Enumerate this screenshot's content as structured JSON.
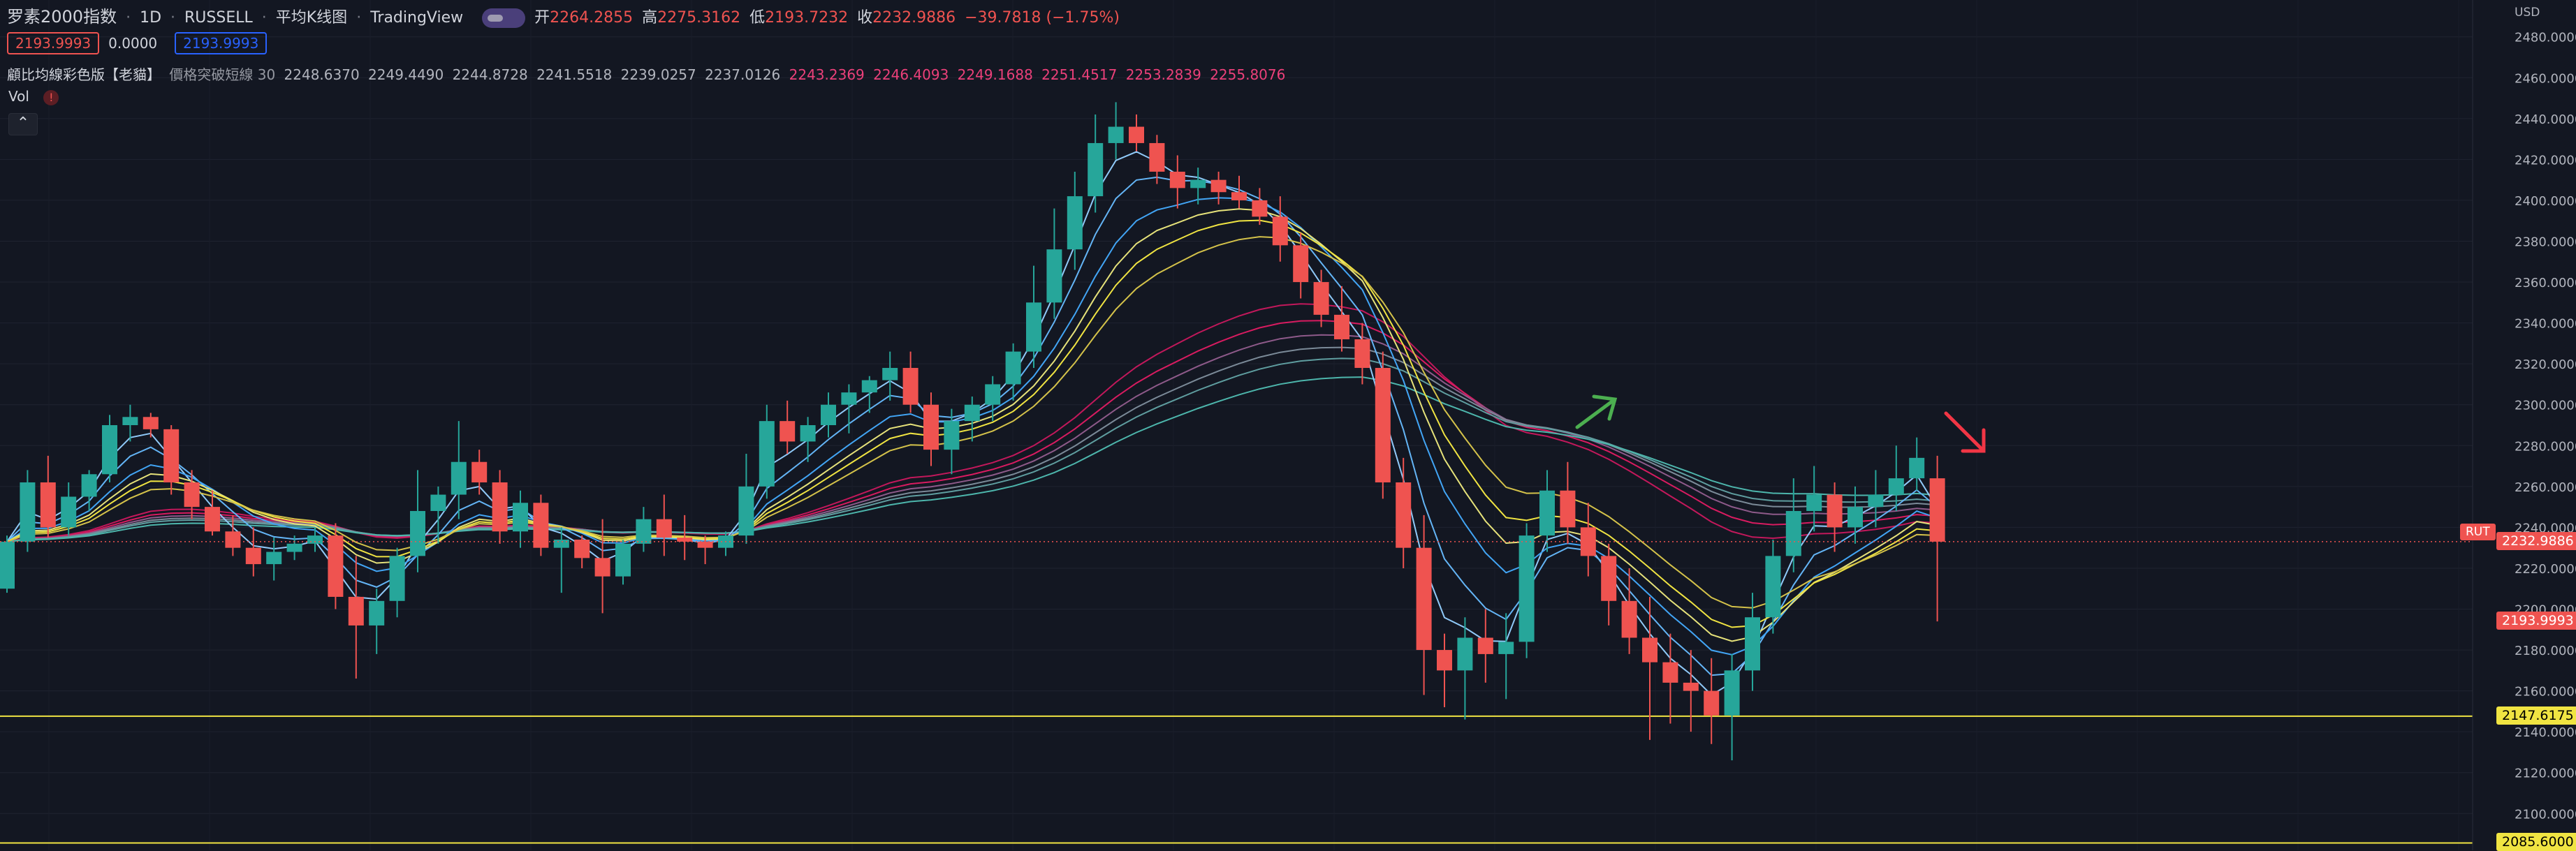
{
  "header": {
    "symbol_name": "罗素2000指数",
    "interval": "1D",
    "exchange": "RUSSELL",
    "chart_type": "平均K线图",
    "source": "TradingView",
    "ohlc": {
      "open_label": "开",
      "open": "2264.2855",
      "high_label": "高",
      "high": "2275.3162",
      "low_label": "低",
      "low": "2193.7232",
      "close_label": "收",
      "close": "2232.9886",
      "change": "−39.7818 (−1.75%)"
    },
    "boxes": [
      "2193.9993",
      "0.0000",
      "2193.9993"
    ]
  },
  "indicator": {
    "name": "顧比均線彩色版【老貓】",
    "params": "價格突破短線 30",
    "values_short": [
      "2248.6370",
      "2249.4490",
      "2244.8728",
      "2241.5518",
      "2239.0257",
      "2237.0126"
    ],
    "values_long": [
      "2243.2369",
      "2246.4093",
      "2249.1688",
      "2251.4517",
      "2253.2839",
      "2255.8076"
    ]
  },
  "vol": {
    "label": "Vol",
    "warning": "!"
  },
  "axis": {
    "currency": "USD"
  },
  "price_labels": {
    "symbol_tag": "RUT",
    "last_price": "2232.9886",
    "low_marker": "2193.9993",
    "level_1": "2147.6175",
    "level_2": "2085.6000"
  },
  "colors": {
    "background": "#131722",
    "up": "#26a69a",
    "down": "#ef5350",
    "level_line": "#f0e442",
    "arrow_up": "#4caf50",
    "arrow_down": "#f23645"
  },
  "chart_data": {
    "type": "candlestick",
    "title": "",
    "y_ticks": [
      2480,
      2460,
      2440,
      2420,
      2400,
      2380,
      2360,
      2340,
      2320,
      2300,
      2280,
      2260,
      2240,
      2220,
      2200,
      2180,
      2160,
      2140,
      2120,
      2100
    ],
    "ylim": [
      2082,
      2498
    ],
    "horizontal_levels": [
      2147.6175,
      2085.6
    ],
    "last_close": 2232.9886,
    "candles": [
      [
        2210,
        2236,
        2208,
        2233
      ],
      [
        2233,
        2268,
        2228,
        2262
      ],
      [
        2262,
        2275,
        2235,
        2240
      ],
      [
        2240,
        2262,
        2236,
        2255
      ],
      [
        2255,
        2268,
        2248,
        2266
      ],
      [
        2266,
        2295,
        2262,
        2290
      ],
      [
        2290,
        2300,
        2282,
        2294
      ],
      [
        2294,
        2296,
        2284,
        2288
      ],
      [
        2288,
        2290,
        2256,
        2262
      ],
      [
        2262,
        2268,
        2244,
        2250
      ],
      [
        2250,
        2258,
        2236,
        2238
      ],
      [
        2238,
        2246,
        2226,
        2230
      ],
      [
        2230,
        2240,
        2216,
        2222
      ],
      [
        2222,
        2235,
        2214,
        2228
      ],
      [
        2228,
        2236,
        2224,
        2232
      ],
      [
        2232,
        2240,
        2228,
        2236
      ],
      [
        2236,
        2242,
        2200,
        2206
      ],
      [
        2206,
        2226,
        2166,
        2192
      ],
      [
        2192,
        2210,
        2178,
        2204
      ],
      [
        2204,
        2230,
        2196,
        2226
      ],
      [
        2226,
        2268,
        2218,
        2248
      ],
      [
        2248,
        2260,
        2232,
        2256
      ],
      [
        2256,
        2292,
        2244,
        2272
      ],
      [
        2272,
        2278,
        2256,
        2262
      ],
      [
        2262,
        2268,
        2232,
        2238
      ],
      [
        2238,
        2258,
        2230,
        2252
      ],
      [
        2252,
        2256,
        2226,
        2230
      ],
      [
        2230,
        2240,
        2208,
        2234
      ],
      [
        2234,
        2236,
        2220,
        2225
      ],
      [
        2225,
        2244,
        2198,
        2216
      ],
      [
        2216,
        2234,
        2212,
        2232
      ],
      [
        2232,
        2250,
        2228,
        2244
      ],
      [
        2244,
        2256,
        2226,
        2235
      ],
      [
        2235,
        2246,
        2224,
        2233
      ],
      [
        2233,
        2236,
        2222,
        2230
      ],
      [
        2230,
        2238,
        2226,
        2236
      ],
      [
        2236,
        2276,
        2232,
        2260
      ],
      [
        2260,
        2300,
        2254,
        2292
      ],
      [
        2292,
        2302,
        2276,
        2282
      ],
      [
        2282,
        2294,
        2272,
        2290
      ],
      [
        2290,
        2306,
        2284,
        2300
      ],
      [
        2300,
        2310,
        2286,
        2306
      ],
      [
        2306,
        2314,
        2296,
        2312
      ],
      [
        2312,
        2326,
        2302,
        2318
      ],
      [
        2318,
        2326,
        2296,
        2300
      ],
      [
        2300,
        2306,
        2270,
        2278
      ],
      [
        2278,
        2298,
        2266,
        2292
      ],
      [
        2292,
        2304,
        2282,
        2300
      ],
      [
        2300,
        2314,
        2292,
        2310
      ],
      [
        2310,
        2330,
        2302,
        2326
      ],
      [
        2326,
        2368,
        2318,
        2350
      ],
      [
        2350,
        2396,
        2342,
        2376
      ],
      [
        2376,
        2414,
        2366,
        2402
      ],
      [
        2402,
        2442,
        2394,
        2428
      ],
      [
        2428,
        2448,
        2420,
        2436
      ],
      [
        2436,
        2442,
        2424,
        2428
      ],
      [
        2428,
        2432,
        2408,
        2414
      ],
      [
        2414,
        2422,
        2396,
        2406
      ],
      [
        2406,
        2416,
        2398,
        2410
      ],
      [
        2410,
        2414,
        2398,
        2404
      ],
      [
        2404,
        2412,
        2396,
        2400
      ],
      [
        2400,
        2406,
        2388,
        2392
      ],
      [
        2392,
        2402,
        2370,
        2378
      ],
      [
        2378,
        2384,
        2352,
        2360
      ],
      [
        2360,
        2366,
        2338,
        2344
      ],
      [
        2344,
        2358,
        2326,
        2332
      ],
      [
        2332,
        2340,
        2310,
        2318
      ],
      [
        2318,
        2326,
        2254,
        2262
      ],
      [
        2262,
        2274,
        2220,
        2230
      ],
      [
        2230,
        2246,
        2158,
        2180
      ],
      [
        2180,
        2188,
        2152,
        2170
      ],
      [
        2170,
        2196,
        2146,
        2186
      ],
      [
        2186,
        2200,
        2164,
        2178
      ],
      [
        2178,
        2198,
        2156,
        2184
      ],
      [
        2184,
        2242,
        2176,
        2236
      ],
      [
        2236,
        2268,
        2228,
        2258
      ],
      [
        2258,
        2272,
        2232,
        2240
      ],
      [
        2240,
        2252,
        2216,
        2226
      ],
      [
        2226,
        2232,
        2192,
        2204
      ],
      [
        2204,
        2220,
        2178,
        2186
      ],
      [
        2186,
        2206,
        2136,
        2174
      ],
      [
        2174,
        2188,
        2144,
        2164
      ],
      [
        2164,
        2180,
        2140,
        2160
      ],
      [
        2160,
        2176,
        2134,
        2148
      ],
      [
        2148,
        2178,
        2126,
        2170
      ],
      [
        2170,
        2208,
        2160,
        2196
      ],
      [
        2196,
        2234,
        2188,
        2226
      ],
      [
        2226,
        2264,
        2218,
        2248
      ],
      [
        2248,
        2270,
        2238,
        2256
      ],
      [
        2256,
        2262,
        2228,
        2240
      ],
      [
        2240,
        2260,
        2232,
        2250
      ],
      [
        2250,
        2268,
        2240,
        2256
      ],
      [
        2256,
        2280,
        2248,
        2264
      ],
      [
        2264,
        2284,
        2258,
        2274
      ],
      [
        2264,
        2275,
        2194,
        2233
      ]
    ]
  }
}
